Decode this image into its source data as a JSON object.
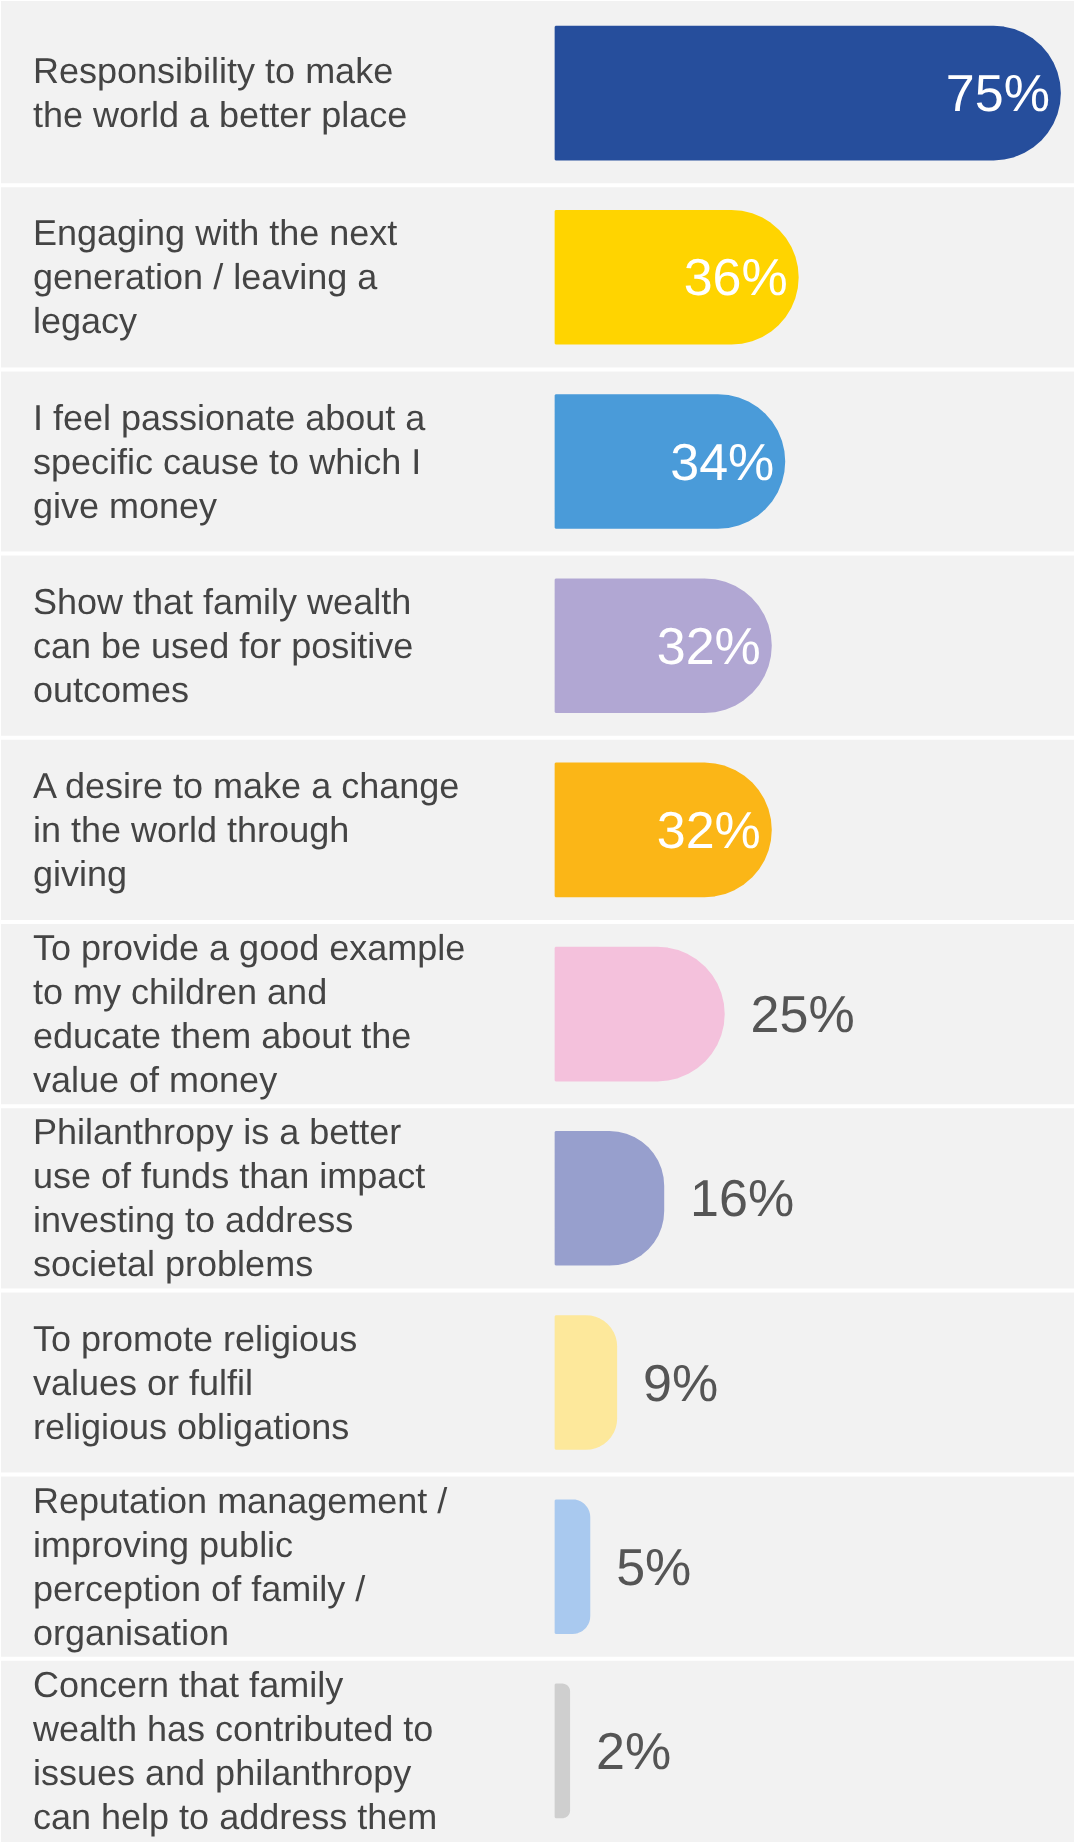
{
  "chart_data": {
    "type": "bar",
    "orientation": "horizontal",
    "data_labels": true,
    "value_labels": [
      "75%",
      "36%",
      "34%",
      "32%",
      "32%",
      "25%",
      "16%",
      "9%",
      "5%",
      "2%"
    ],
    "categories": [
      "Responsibility to make the world a better place",
      "Engaging with the next generation / leaving a legacy",
      "I feel passionate about a specific cause to which I give money",
      "Show that family wealth can be used for positive outcomes",
      "A desire to make a change in the world through giving",
      "To provide a good example to my children and educate them about the value of money",
      "Philanthropy is a better use of funds than impact investing to address societal problems",
      "To promote religious values or fulfil religious obligations",
      "Reputation management / improving public perception of family / organisation",
      "Concern that family wealth has contributed to issues and philanthropy can help to address them"
    ],
    "values": [
      75,
      36,
      34,
      32,
      32,
      25,
      16,
      9,
      5,
      2
    ],
    "colors": [
      "#264e9c",
      "#ffd400",
      "#4a9bd9",
      "#b1a7d3",
      "#fbb617",
      "#f4c1dc",
      "#979fcd",
      "#fde89b",
      "#a9c9ef",
      "#cfcfcf"
    ],
    "grid": false
  }
}
